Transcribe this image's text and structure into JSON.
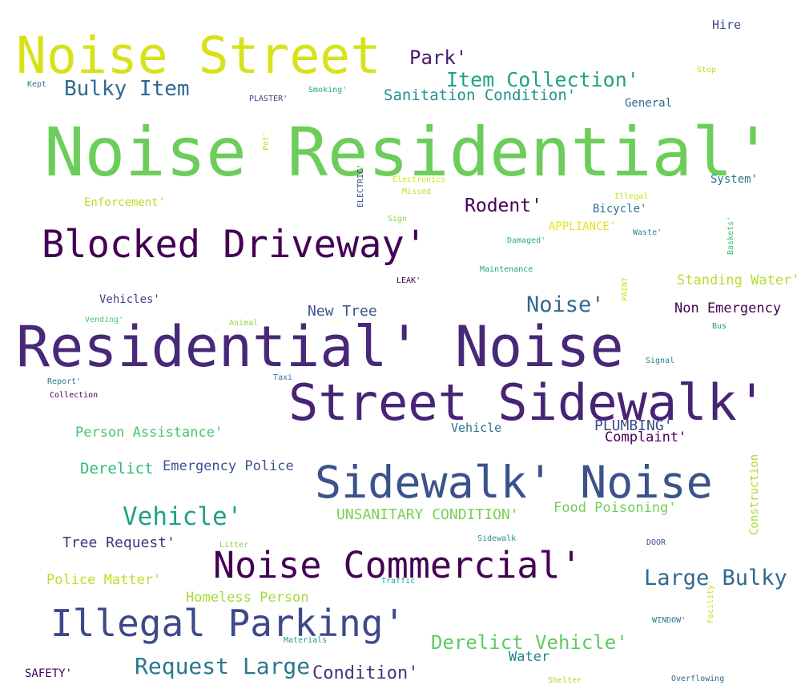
{
  "words": [
    {
      "text": "Noise Residential'",
      "color": "#6ccd5a"
    },
    {
      "text": "Residential' Noise",
      "color": "#482878"
    },
    {
      "text": "Noise Street",
      "color": "#d8e219"
    },
    {
      "text": "Street Sidewalk'",
      "color": "#482475"
    },
    {
      "text": "Sidewalk' Noise",
      "color": "#3b528b"
    },
    {
      "text": "Blocked Driveway'",
      "color": "#440154"
    },
    {
      "text": "Illegal Parking'",
      "color": "#3e4989"
    },
    {
      "text": "Noise Commercial'",
      "color": "#440154"
    },
    {
      "text": "Vehicle'",
      "color": "#1fa187"
    },
    {
      "text": "Request Large",
      "color": "#2a788e"
    },
    {
      "text": "Large Bulky",
      "color": "#31688e"
    },
    {
      "text": "Bulky Item",
      "color": "#31688e"
    },
    {
      "text": "Item Collection'",
      "color": "#1fa187"
    },
    {
      "text": "Derelict Vehicle'",
      "color": "#5ec962"
    },
    {
      "text": "Noise'",
      "color": "#31688e"
    },
    {
      "text": "Park'",
      "color": "#481a6c"
    },
    {
      "text": "Rodent'",
      "color": "#440154"
    },
    {
      "text": "Condition'",
      "color": "#46337e"
    },
    {
      "text": "Sanitation Condition'",
      "color": "#21918c"
    },
    {
      "text": "Standing Water'",
      "color": "#b5de2b"
    },
    {
      "text": "Non Emergency",
      "color": "#440154"
    },
    {
      "text": "Emergency Police",
      "color": "#3b528b"
    },
    {
      "text": "Derelict",
      "color": "#35b779"
    },
    {
      "text": "UNSANITARY CONDITION'",
      "color": "#7ad151"
    },
    {
      "text": "Food Poisoning'",
      "color": "#6ece58"
    },
    {
      "text": "Person Assistance'",
      "color": "#4ac16d"
    },
    {
      "text": "Tree Request'",
      "color": "#46327e"
    },
    {
      "text": "Police Matter'",
      "color": "#bddf26"
    },
    {
      "text": "Homeless Person",
      "color": "#a2da37"
    },
    {
      "text": "New Tree",
      "color": "#3b528b"
    },
    {
      "text": "PLUMBING'",
      "color": "#3e4a89"
    },
    {
      "text": "Complaint'",
      "color": "#440154"
    },
    {
      "text": "Water",
      "color": "#26828e"
    },
    {
      "text": "Vehicles'",
      "color": "#414487"
    },
    {
      "text": "Hire",
      "color": "#3e4a89"
    },
    {
      "text": "General",
      "color": "#31688e"
    },
    {
      "text": "System'",
      "color": "#2c728e"
    },
    {
      "text": "Bicycle'",
      "color": "#2c728e"
    },
    {
      "text": "Enforcement'",
      "color": "#b5de2b"
    },
    {
      "text": "APPLIANCE'",
      "color": "#e5e419"
    },
    {
      "text": "Vehicle",
      "color": "#2c728e"
    },
    {
      "text": "SAFETY'",
      "color": "#440154"
    },
    {
      "text": "Construction",
      "color": "#a8db34"
    },
    {
      "text": "Kept",
      "color": "#2c728e"
    },
    {
      "text": "PLASTER'",
      "color": "#3f4788"
    },
    {
      "text": "Smoking'",
      "color": "#22a785"
    },
    {
      "text": "Stop",
      "color": "#b8de29"
    },
    {
      "text": "Pet'",
      "color": "#bddf26"
    },
    {
      "text": "ELECTRIC'",
      "color": "#3d4d8a"
    },
    {
      "text": "Electronics",
      "color": "#dae319"
    },
    {
      "text": "Missed",
      "color": "#c2df23"
    },
    {
      "text": "Illegal",
      "color": "#cae11f"
    },
    {
      "text": "Sign",
      "color": "#8ed645"
    },
    {
      "text": "Damaged'",
      "color": "#29af7f"
    },
    {
      "text": "Waste'",
      "color": "#25858e"
    },
    {
      "text": "Baskets'",
      "color": "#3bbb75"
    },
    {
      "text": "Maintenance",
      "color": "#1fa088"
    },
    {
      "text": "LEAK'",
      "color": "#440154"
    },
    {
      "text": "PAINT",
      "color": "#cde11d"
    },
    {
      "text": "Vending'",
      "color": "#4ac16d"
    },
    {
      "text": "Animal",
      "color": "#93d741"
    },
    {
      "text": "Bus",
      "color": "#21918c"
    },
    {
      "text": "Signal",
      "color": "#26828e"
    },
    {
      "text": "Report'",
      "color": "#2a788e"
    },
    {
      "text": "Taxi",
      "color": "#2a788e"
    },
    {
      "text": "Collection",
      "color": "#440154"
    },
    {
      "text": "Litter",
      "color": "#81d34d"
    },
    {
      "text": "Sidewalk",
      "color": "#1f968b"
    },
    {
      "text": "DOOR",
      "color": "#3b528b"
    },
    {
      "text": "Traffic",
      "color": "#1fa187"
    },
    {
      "text": "Facility'",
      "color": "#d0e11c"
    },
    {
      "text": "WINDOW'",
      "color": "#2a788e"
    },
    {
      "text": "Materials",
      "color": "#1f9e89"
    },
    {
      "text": "Shelter",
      "color": "#a5db36"
    },
    {
      "text": "Overflowing",
      "color": "#31688e"
    }
  ]
}
